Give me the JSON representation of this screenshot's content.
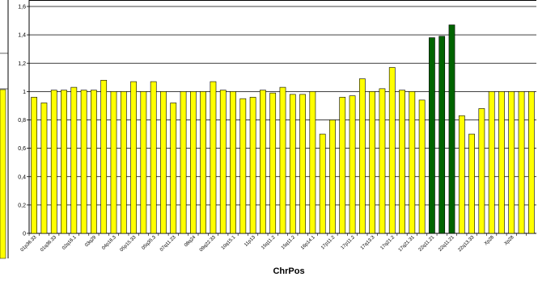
{
  "chart_data": {
    "type": "bar",
    "xlabel": "ChrPos",
    "ylim": [
      0,
      1.6
    ],
    "yticks": [
      "0",
      "0,2",
      "0,4",
      "0,6",
      "0,8",
      "1",
      "1,2",
      "1,4",
      "1,6"
    ],
    "grid": true,
    "categories": [
      "01p36.33",
      "",
      "01q36.33",
      "",
      "02q16.1",
      "",
      "03q29",
      "",
      "04p16.3",
      "",
      "05p15.33",
      "",
      "05q35.3",
      "",
      "07q11.23",
      "",
      "08q24",
      "",
      "09q22.33",
      "",
      "10q15.1",
      "",
      "11p13",
      "",
      "15q11.2",
      "",
      "15q11.2",
      "",
      "16p14.1",
      "",
      "17p11.2",
      "",
      "17p11.2",
      "",
      "17q13.3",
      "",
      "17q21.2",
      "",
      "17q21.31",
      "",
      "22q11.21",
      "",
      "22q11.21",
      "",
      "22q13.33",
      "",
      "Xp28",
      "",
      "Xp28",
      "",
      ""
    ],
    "values": [
      0.96,
      0.92,
      1.01,
      1.01,
      1.03,
      1.01,
      1.01,
      1.08,
      1.0,
      1.0,
      1.07,
      1.0,
      1.07,
      1.0,
      0.92,
      1.0,
      1.0,
      1.0,
      1.07,
      1.01,
      1.0,
      0.95,
      0.96,
      1.01,
      0.99,
      1.03,
      0.98,
      0.98,
      1.0,
      0.7,
      0.8,
      0.96,
      0.97,
      1.09,
      1.0,
      1.02,
      1.17,
      1.01,
      1.0,
      0.94,
      1.38,
      1.39,
      1.47,
      0.83,
      0.7,
      0.88,
      1.0,
      1.0,
      1.0,
      1.0,
      1.0
    ],
    "bar_colors": [
      "yellow",
      "yellow",
      "yellow",
      "yellow",
      "yellow",
      "yellow",
      "yellow",
      "yellow",
      "yellow",
      "yellow",
      "yellow",
      "yellow",
      "yellow",
      "yellow",
      "yellow",
      "yellow",
      "yellow",
      "yellow",
      "yellow",
      "yellow",
      "yellow",
      "yellow",
      "yellow",
      "yellow",
      "yellow",
      "yellow",
      "yellow",
      "yellow",
      "yellow",
      "yellow",
      "yellow",
      "yellow",
      "yellow",
      "yellow",
      "yellow",
      "yellow",
      "yellow",
      "yellow",
      "yellow",
      "yellow",
      "green",
      "green",
      "green",
      "yellow",
      "yellow",
      "yellow",
      "yellow",
      "yellow",
      "yellow",
      "yellow",
      "yellow"
    ],
    "colors": {
      "yellow": "#ffff00",
      "green": "#006400",
      "outline": "#000000",
      "grid": "#000000"
    }
  }
}
